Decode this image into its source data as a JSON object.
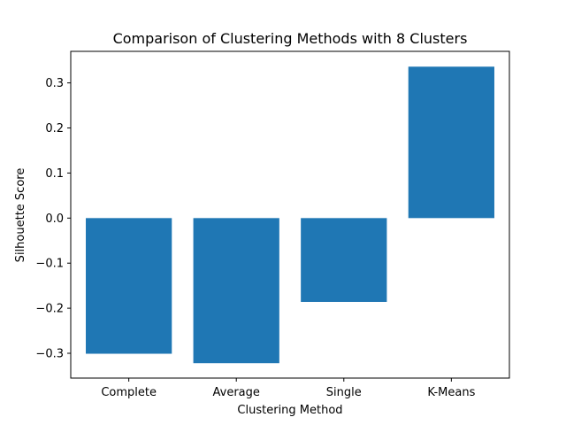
{
  "chart_data": {
    "type": "bar",
    "title": "Comparison of Clustering Methods with 8 Clusters",
    "xlabel": "Clustering Method",
    "ylabel": "Silhouette Score",
    "categories": [
      "Complete",
      "Average",
      "Single",
      "K-Means"
    ],
    "values": [
      -0.301,
      -0.322,
      -0.186,
      0.336
    ],
    "ylim": [
      -0.355,
      0.37
    ],
    "yticks": [
      -0.3,
      -0.2,
      -0.1,
      0.0,
      0.1,
      0.2,
      0.3
    ],
    "ytick_labels": [
      "−0.3",
      "−0.2",
      "−0.1",
      "0.0",
      "0.1",
      "0.2",
      "0.3"
    ],
    "grid": false,
    "legend": false,
    "bar_color": "#1f77b4"
  }
}
